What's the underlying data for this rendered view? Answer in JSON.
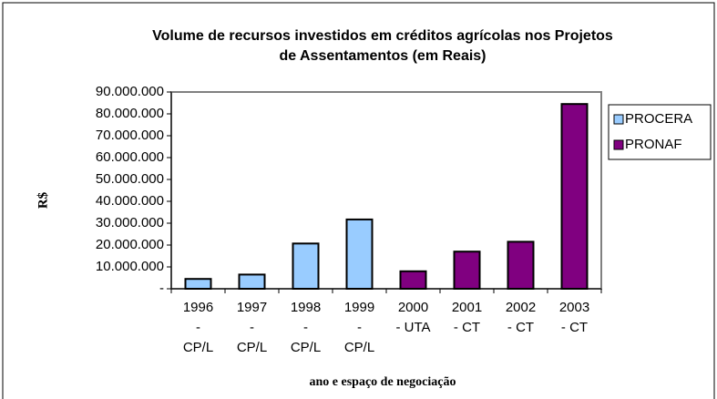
{
  "chart_data": {
    "type": "bar",
    "title": "Volume de recursos investidos em créditos agrícolas nos Projetos de Assentamentos (em Reais)",
    "xlabel": "ano e espaço de negociação",
    "ylabel": "R$",
    "categories": [
      "1996\n-\nCP/L",
      "1997\n-\nCP/L",
      "1998\n-\nCP/L",
      "1999\n-\nCP/L",
      "2000\n- UTA",
      "2001\n- CT",
      "2002\n- CT",
      "2003\n- CT"
    ],
    "series": [
      {
        "name": "PROCERA",
        "color": "#99ccff",
        "values": [
          4500000,
          6500000,
          20700000,
          31700000,
          null,
          null,
          null,
          null
        ]
      },
      {
        "name": "PRONAF",
        "color": "#800080",
        "values": [
          null,
          null,
          null,
          null,
          8000000,
          17000000,
          21500000,
          84500000
        ]
      }
    ],
    "ylim": [
      0,
      90000000
    ],
    "yticks": [
      {
        "value": 0,
        "label": "-"
      },
      {
        "value": 10000000,
        "label": "10.000.000"
      },
      {
        "value": 20000000,
        "label": "20.000.000"
      },
      {
        "value": 30000000,
        "label": "30.000.000"
      },
      {
        "value": 40000000,
        "label": "40.000.000"
      },
      {
        "value": 50000000,
        "label": "50.000.000"
      },
      {
        "value": 60000000,
        "label": "60.000.000"
      },
      {
        "value": 70000000,
        "label": "70.000.000"
      },
      {
        "value": 80000000,
        "label": "80.000.000"
      },
      {
        "value": 90000000,
        "label": "90.000.000"
      }
    ],
    "grid": false,
    "legend": "right"
  }
}
